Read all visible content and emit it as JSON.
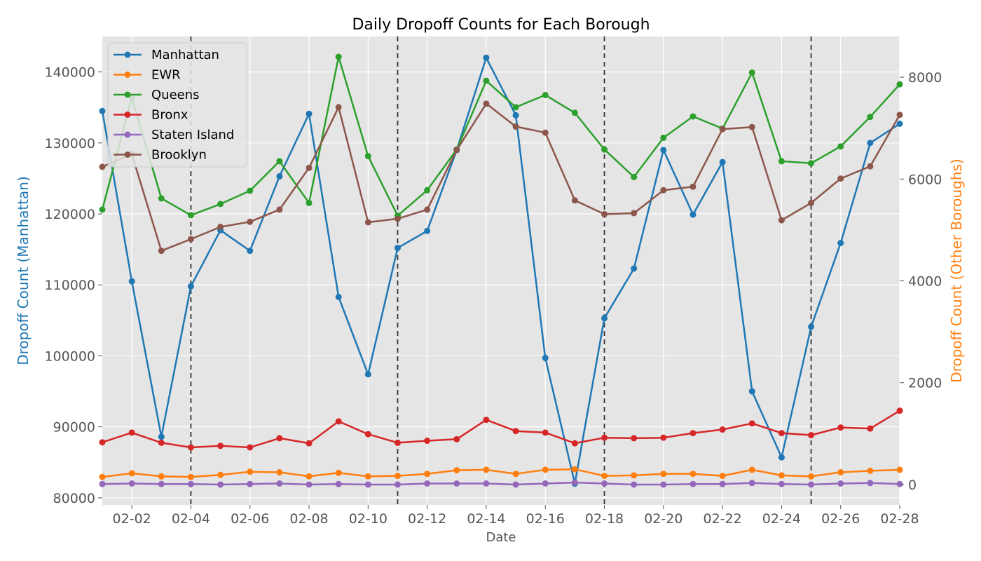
{
  "chart_data": {
    "type": "line",
    "title": "Daily Dropoff Counts for Each Borough",
    "xlabel": "Date",
    "ylabel_left": "Dropoff Count (Manhattan)",
    "ylabel_right": "Dropoff Count (Other Boroughs)",
    "ylim_left": [
      79000,
      145000
    ],
    "ylim_right": [
      -400,
      8800
    ],
    "yticks_left": [
      80000,
      90000,
      100000,
      110000,
      120000,
      130000,
      140000
    ],
    "yticks_right": [
      0,
      2000,
      4000,
      6000,
      8000
    ],
    "x": [
      "02-01",
      "02-02",
      "02-03",
      "02-04",
      "02-05",
      "02-06",
      "02-07",
      "02-08",
      "02-09",
      "02-10",
      "02-11",
      "02-12",
      "02-13",
      "02-14",
      "02-15",
      "02-16",
      "02-17",
      "02-18",
      "02-19",
      "02-20",
      "02-21",
      "02-22",
      "02-23",
      "02-24",
      "02-25",
      "02-26",
      "02-27",
      "02-28"
    ],
    "xticks": [
      "02-02",
      "02-04",
      "02-06",
      "02-08",
      "02-10",
      "02-12",
      "02-14",
      "02-16",
      "02-18",
      "02-20",
      "02-22",
      "02-24",
      "02-26",
      "02-28"
    ],
    "vlines": [
      "02-04",
      "02-11",
      "02-18",
      "02-25"
    ],
    "grid": true,
    "legend_position": "top-left",
    "series": [
      {
        "name": "Manhattan",
        "axis": "left",
        "color": "#1f77b4",
        "values": [
          134500,
          110500,
          88600,
          109800,
          117700,
          114800,
          125300,
          134100,
          108300,
          97400,
          115200,
          117600,
          129000,
          142000,
          133900,
          99700,
          82000,
          105300,
          112300,
          129000,
          119900,
          127300,
          95000,
          85700,
          104100,
          115900,
          130000,
          132700
        ]
      },
      {
        "name": "EWR",
        "axis": "right",
        "color": "#ff7f0e",
        "values": [
          150,
          220,
          160,
          150,
          190,
          250,
          240,
          160,
          230,
          160,
          170,
          210,
          280,
          290,
          210,
          290,
          300,
          170,
          180,
          210,
          210,
          170,
          290,
          180,
          160,
          240,
          270,
          290
        ]
      },
      {
        "name": "Queens",
        "axis": "right",
        "color": "#2ca02c",
        "values": [
          5400,
          7600,
          5620,
          5290,
          5510,
          5770,
          6350,
          5530,
          8400,
          6450,
          5280,
          5780,
          6580,
          7930,
          7410,
          7650,
          7300,
          6580,
          6040,
          6810,
          7230,
          6990,
          8090,
          6350,
          6310,
          6640,
          7220,
          7860
        ]
      },
      {
        "name": "Bronx",
        "axis": "right",
        "color": "#d62728",
        "values": [
          830,
          1020,
          820,
          730,
          760,
          730,
          910,
          810,
          1240,
          990,
          820,
          860,
          890,
          1270,
          1050,
          1020,
          810,
          920,
          910,
          920,
          1010,
          1080,
          1200,
          1010,
          970,
          1120,
          1100,
          1450
        ]
      },
      {
        "name": "Staten Island",
        "axis": "right",
        "color": "#9467bd",
        "values": [
          10,
          20,
          10,
          10,
          0,
          10,
          20,
          0,
          10,
          0,
          0,
          20,
          20,
          20,
          0,
          20,
          40,
          20,
          0,
          0,
          10,
          10,
          30,
          10,
          0,
          20,
          30,
          10
        ]
      },
      {
        "name": "Brooklyn",
        "axis": "right",
        "color": "#8c564b",
        "values": [
          6240,
          6490,
          4590,
          4820,
          5060,
          5160,
          5400,
          6220,
          7410,
          5150,
          5220,
          5400,
          6570,
          7480,
          7030,
          6910,
          5580,
          5310,
          5330,
          5780,
          5850,
          6980,
          7020,
          5190,
          5530,
          6010,
          6250,
          7260
        ]
      }
    ]
  }
}
